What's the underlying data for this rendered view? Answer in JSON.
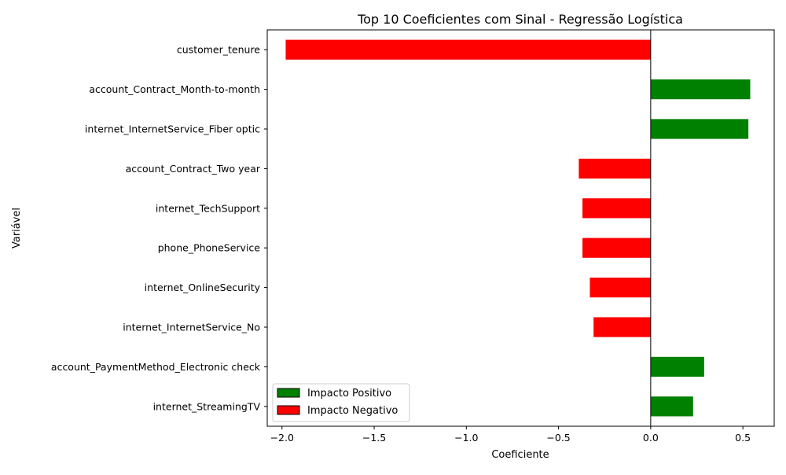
{
  "chart_data": {
    "type": "bar",
    "orientation": "horizontal",
    "title": "Top 10 Coeficientes com Sinal - Regressão Logística",
    "xlabel": "Coeficiente",
    "ylabel": "Variável",
    "categories": [
      "customer_tenure",
      "account_Contract_Month-to-month",
      "internet_InternetService_Fiber optic",
      "account_Contract_Two year",
      "internet_TechSupport",
      "phone_PhoneService",
      "internet_OnlineSecurity",
      "internet_InternetService_No",
      "account_PaymentMethod_Electronic check",
      "internet_StreamingTV"
    ],
    "values": [
      -1.98,
      0.54,
      0.53,
      -0.39,
      -0.37,
      -0.37,
      -0.33,
      -0.31,
      0.29,
      0.23
    ],
    "xlim": [
      -2.08,
      0.67
    ],
    "xticks": [
      -2.0,
      -1.5,
      -1.0,
      -0.5,
      0.0,
      0.5
    ],
    "xtick_labels": [
      "−2.0",
      "−1.5",
      "−1.0",
      "−0.5",
      "0.0",
      "0.5"
    ],
    "grid": false,
    "zero_line": true,
    "legend": {
      "placement": "lower-left",
      "entries": [
        {
          "label": "Impacto Positivo",
          "color": "#008000"
        },
        {
          "label": "Impacto Negativo",
          "color": "#ff0000"
        }
      ]
    },
    "colors": {
      "positive": "#008000",
      "negative": "#ff0000"
    }
  }
}
